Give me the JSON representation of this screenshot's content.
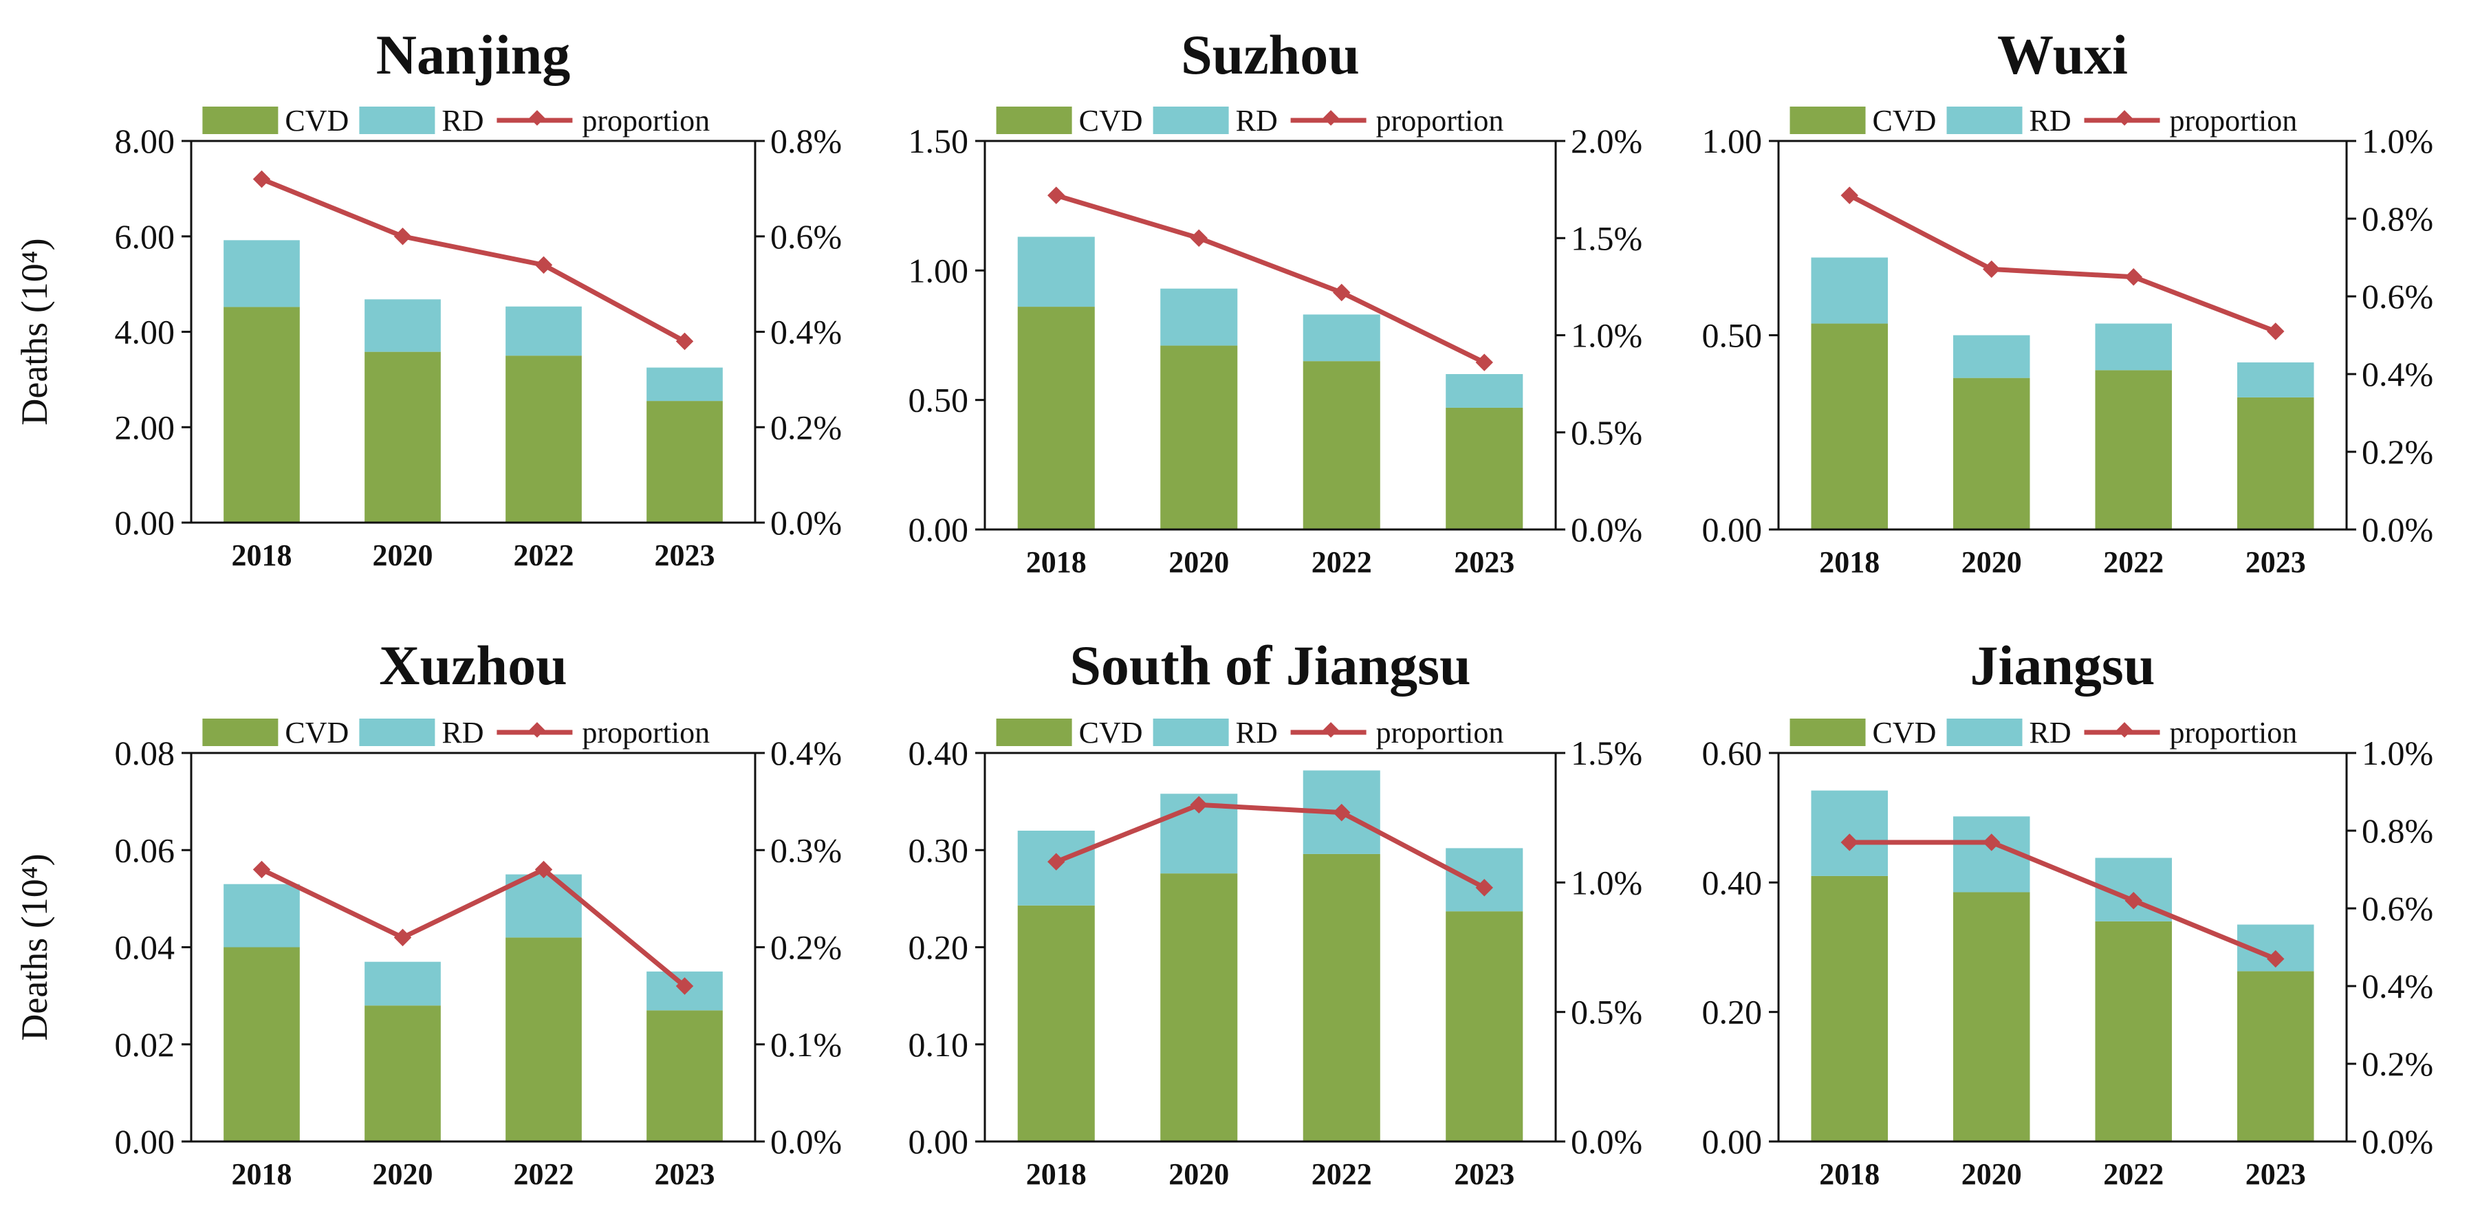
{
  "colors": {
    "cvd": "#86a84a",
    "rd": "#7ecad0",
    "proportion": "#c0474a",
    "axis": "#111111"
  },
  "chart_data": [
    {
      "type": "bar",
      "title": "Nanjing",
      "categories": [
        "2018",
        "2020",
        "2022",
        "2023"
      ],
      "ylabel": "Deaths (10⁴)",
      "y_ticks": [
        "0.00",
        "2.00",
        "4.00",
        "6.00",
        "8.00"
      ],
      "ylim": [
        0,
        8
      ],
      "y2_ticks": [
        "0.0%",
        "0.2%",
        "0.4%",
        "0.6%",
        "0.8%"
      ],
      "y2lim": [
        0,
        0.8
      ],
      "legend": [
        "CVD",
        "RD",
        "proportion"
      ],
      "legend_position": "top",
      "series": [
        {
          "name": "CVD",
          "kind": "stacked-bar",
          "values": [
            4.52,
            3.58,
            3.5,
            2.55
          ]
        },
        {
          "name": "RD",
          "kind": "stacked-bar",
          "values": [
            1.4,
            1.1,
            1.03,
            0.7
          ]
        },
        {
          "name": "proportion",
          "kind": "line",
          "axis": "right",
          "unit": "%",
          "values": [
            0.72,
            0.6,
            0.54,
            0.38
          ]
        }
      ]
    },
    {
      "type": "bar",
      "title": "Suzhou",
      "categories": [
        "2018",
        "2020",
        "2022",
        "2023"
      ],
      "ylabel": "",
      "y_ticks": [
        "0.00",
        "0.50",
        "1.00",
        "1.50"
      ],
      "ylim": [
        0,
        1.5
      ],
      "y2_ticks": [
        "0.0%",
        "0.5%",
        "1.0%",
        "1.5%",
        "2.0%"
      ],
      "y2lim": [
        0,
        2.0
      ],
      "legend": [
        "CVD",
        "RD",
        "proportion"
      ],
      "legend_position": "top",
      "series": [
        {
          "name": "CVD",
          "kind": "stacked-bar",
          "values": [
            0.86,
            0.71,
            0.65,
            0.47
          ]
        },
        {
          "name": "RD",
          "kind": "stacked-bar",
          "values": [
            0.27,
            0.22,
            0.18,
            0.13
          ]
        },
        {
          "name": "proportion",
          "kind": "line",
          "axis": "right",
          "unit": "%",
          "values": [
            1.72,
            1.5,
            1.22,
            0.86
          ]
        }
      ]
    },
    {
      "type": "bar",
      "title": "Wuxi",
      "categories": [
        "2018",
        "2020",
        "2022",
        "2023"
      ],
      "ylabel": "",
      "y_ticks": [
        "0.00",
        "0.50",
        "1.00"
      ],
      "ylim": [
        0,
        1.0
      ],
      "y2_ticks": [
        "0.0%",
        "0.2%",
        "0.4%",
        "0.6%",
        "0.8%",
        "1.0%"
      ],
      "y2lim": [
        0,
        1.0
      ],
      "legend": [
        "CVD",
        "RD",
        "proportion"
      ],
      "legend_position": "top",
      "series": [
        {
          "name": "CVD",
          "kind": "stacked-bar",
          "values": [
            0.53,
            0.39,
            0.41,
            0.34
          ]
        },
        {
          "name": "RD",
          "kind": "stacked-bar",
          "values": [
            0.17,
            0.11,
            0.12,
            0.09
          ]
        },
        {
          "name": "proportion",
          "kind": "line",
          "axis": "right",
          "unit": "%",
          "values": [
            0.86,
            0.67,
            0.65,
            0.51
          ]
        }
      ]
    },
    {
      "type": "bar",
      "title": "Xuzhou",
      "categories": [
        "2018",
        "2020",
        "2022",
        "2023"
      ],
      "ylabel": "Deaths (10⁴)",
      "y_ticks": [
        "0.00",
        "0.02",
        "0.04",
        "0.06",
        "0.08"
      ],
      "ylim": [
        0,
        0.08
      ],
      "y2_ticks": [
        "0.0%",
        "0.1%",
        "0.2%",
        "0.3%",
        "0.4%"
      ],
      "y2lim": [
        0,
        0.4
      ],
      "legend": [
        "CVD",
        "RD",
        "proportion"
      ],
      "legend_position": "top",
      "series": [
        {
          "name": "CVD",
          "kind": "stacked-bar",
          "values": [
            0.04,
            0.028,
            0.042,
            0.027
          ]
        },
        {
          "name": "RD",
          "kind": "stacked-bar",
          "values": [
            0.013,
            0.009,
            0.013,
            0.008
          ]
        },
        {
          "name": "proportion",
          "kind": "line",
          "axis": "right",
          "unit": "%",
          "values": [
            0.28,
            0.21,
            0.28,
            0.16
          ]
        }
      ]
    },
    {
      "type": "bar",
      "title": "South of Jiangsu",
      "categories": [
        "2018",
        "2020",
        "2022",
        "2023"
      ],
      "ylabel": "",
      "y_ticks": [
        "0.00",
        "0.10",
        "0.20",
        "0.30",
        "0.40"
      ],
      "ylim": [
        0,
        0.4
      ],
      "y2_ticks": [
        "0.0%",
        "0.5%",
        "1.0%",
        "1.5%"
      ],
      "y2lim": [
        0,
        1.5
      ],
      "legend": [
        "CVD",
        "RD",
        "proportion"
      ],
      "legend_position": "top",
      "series": [
        {
          "name": "CVD",
          "kind": "stacked-bar",
          "values": [
            0.243,
            0.276,
            0.296,
            0.237
          ]
        },
        {
          "name": "RD",
          "kind": "stacked-bar",
          "values": [
            0.077,
            0.082,
            0.086,
            0.065
          ]
        },
        {
          "name": "proportion",
          "kind": "line",
          "axis": "right",
          "unit": "%",
          "values": [
            1.08,
            1.3,
            1.27,
            0.98
          ]
        }
      ]
    },
    {
      "type": "bar",
      "title": "Jiangsu",
      "categories": [
        "2018",
        "2020",
        "2022",
        "2023"
      ],
      "ylabel": "",
      "y_ticks": [
        "0.00",
        "0.20",
        "0.40",
        "0.60"
      ],
      "ylim": [
        0,
        0.6
      ],
      "y2_ticks": [
        "0.0%",
        "0.2%",
        "0.4%",
        "0.6%",
        "0.8%",
        "1.0%"
      ],
      "y2lim": [
        0,
        1.0
      ],
      "legend": [
        "CVD",
        "RD",
        "proportion"
      ],
      "legend_position": "top",
      "series": [
        {
          "name": "CVD",
          "kind": "stacked-bar",
          "values": [
            0.41,
            0.385,
            0.34,
            0.263
          ]
        },
        {
          "name": "RD",
          "kind": "stacked-bar",
          "values": [
            0.132,
            0.117,
            0.098,
            0.072
          ]
        },
        {
          "name": "proportion",
          "kind": "line",
          "axis": "right",
          "unit": "%",
          "values": [
            0.77,
            0.77,
            0.62,
            0.47
          ]
        }
      ]
    }
  ]
}
